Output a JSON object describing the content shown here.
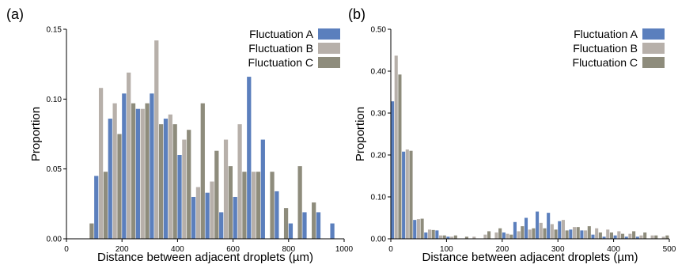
{
  "colors": {
    "A": "#5b7fbd",
    "B": "#b7b0aa",
    "C": "#8e8c7c"
  },
  "chart_data": [
    {
      "type": "bar",
      "panel_label": "(a)",
      "xlabel": "Distance between adjacent droplets (µm)",
      "ylabel": "Proportion",
      "xlim": [
        0,
        1000
      ],
      "ylim": [
        0,
        0.15
      ],
      "xticks": [
        "0",
        "200",
        "400",
        "600",
        "800",
        "1000"
      ],
      "yticks": [
        "0.00",
        "0.05",
        "0.10",
        "0.15"
      ],
      "legend_position": "top-right",
      "bin_width": 50,
      "x": [
        100,
        150,
        200,
        250,
        300,
        350,
        400,
        450,
        500,
        550,
        600,
        650,
        700,
        750,
        800,
        850,
        900,
        950
      ],
      "series": [
        {
          "name": "Fluctuation A",
          "color_key": "A",
          "values": [
            0.045,
            0.086,
            0.104,
            0.093,
            0.104,
            0.086,
            0.06,
            0.03,
            0.033,
            0.019,
            0.03,
            0.116,
            0.071,
            0.034,
            0.011,
            0.019,
            0.019,
            0.011
          ]
        },
        {
          "name": "Fluctuation B",
          "color_key": "B",
          "values": [
            0.108,
            0.097,
            0.119,
            0.093,
            0.142,
            0.089,
            0.071,
            0.037,
            0.041,
            0.071,
            0.082,
            0.048,
            0.0,
            0.0,
            0.0,
            0.0,
            0.0,
            0.0
          ]
        },
        {
          "name": "Fluctuation C",
          "color_key": "C",
          "pre_values": [
            0.011
          ],
          "values": [
            0.048,
            0.075,
            0.097,
            0.097,
            0.082,
            0.082,
            0.078,
            0.097,
            0.063,
            0.052,
            0.048,
            0.048,
            0.048,
            0.022,
            0.052,
            0.026,
            0.0,
            0.0
          ]
        }
      ]
    },
    {
      "type": "bar",
      "panel_label": "(b)",
      "xlabel": "Distance between adjacent droplets (µm)",
      "ylabel": "Proportion",
      "xlim": [
        0,
        500
      ],
      "ylim": [
        0,
        0.5
      ],
      "xticks": [
        "0",
        "100",
        "200",
        "300",
        "400",
        "500"
      ],
      "yticks": [
        "0.00",
        "0.10",
        "0.20",
        "0.30",
        "0.40",
        "0.50"
      ],
      "legend_position": "top-right",
      "bin_width": 20,
      "x": [
        0,
        20,
        40,
        60,
        80,
        100,
        120,
        140,
        160,
        180,
        200,
        220,
        240,
        260,
        280,
        300,
        320,
        340,
        360,
        380,
        400,
        420,
        440,
        460,
        480
      ],
      "series": [
        {
          "name": "Fluctuation A",
          "color_key": "A",
          "values": [
            0.328,
            0.208,
            0.045,
            0.015,
            0.02,
            0.005,
            0.0,
            0.0,
            0.0,
            0.0,
            0.015,
            0.04,
            0.05,
            0.065,
            0.062,
            0.042,
            0.022,
            0.02,
            0.01,
            0.005,
            0.008,
            0.005,
            0.005,
            0.0,
            0.0
          ]
        },
        {
          "name": "Fluctuation B",
          "color_key": "B",
          "values": [
            0.437,
            0.213,
            0.047,
            0.022,
            0.008,
            0.005,
            0.0,
            0.005,
            0.01,
            0.015,
            0.012,
            0.018,
            0.022,
            0.038,
            0.035,
            0.045,
            0.028,
            0.02,
            0.025,
            0.022,
            0.018,
            0.012,
            0.008,
            0.008,
            0.005
          ]
        },
        {
          "name": "Fluctuation C",
          "color_key": "C",
          "values": [
            0.392,
            0.21,
            0.048,
            0.021,
            0.008,
            0.008,
            0.005,
            0.0,
            0.018,
            0.025,
            0.01,
            0.03,
            0.025,
            0.025,
            0.022,
            0.02,
            0.028,
            0.03,
            0.015,
            0.015,
            0.012,
            0.018,
            0.015,
            0.008,
            0.008
          ]
        }
      ]
    }
  ]
}
